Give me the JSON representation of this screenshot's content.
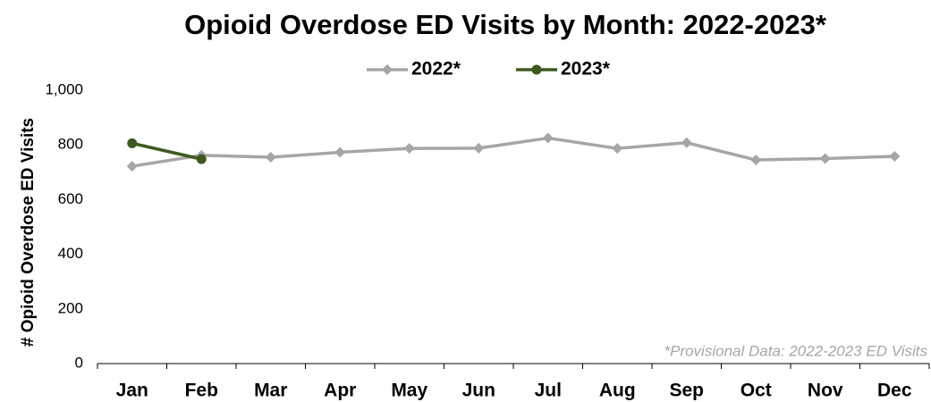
{
  "chart_data": {
    "type": "line",
    "title": "Opioid Overdose ED Visits by Month: 2022-2023*",
    "y_label": "# Opioid Overdose ED Visits",
    "annotation": "*Provisional Data: 2022-2023 ED Visits",
    "categories": [
      "Jan",
      "Feb",
      "Mar",
      "Apr",
      "May",
      "Jun",
      "Jul",
      "Aug",
      "Sep",
      "Oct",
      "Nov",
      "Dec"
    ],
    "series": [
      {
        "name": "2022*",
        "color": "#a6a6a6",
        "marker": "diamond",
        "values": [
          722,
          762,
          755,
          773,
          787,
          788,
          825,
          787,
          808,
          745,
          750,
          758
        ]
      },
      {
        "name": "2023*",
        "color": "#3d5a1e",
        "marker": "circle",
        "values": [
          806,
          748,
          null,
          null,
          null,
          null,
          null,
          null,
          null,
          null,
          null,
          null
        ]
      }
    ],
    "ylim": [
      0,
      1000
    ],
    "yticks": [
      0,
      200,
      400,
      600,
      800,
      {
        "value": 1000,
        "label": "1,000"
      }
    ],
    "legend": "top"
  }
}
